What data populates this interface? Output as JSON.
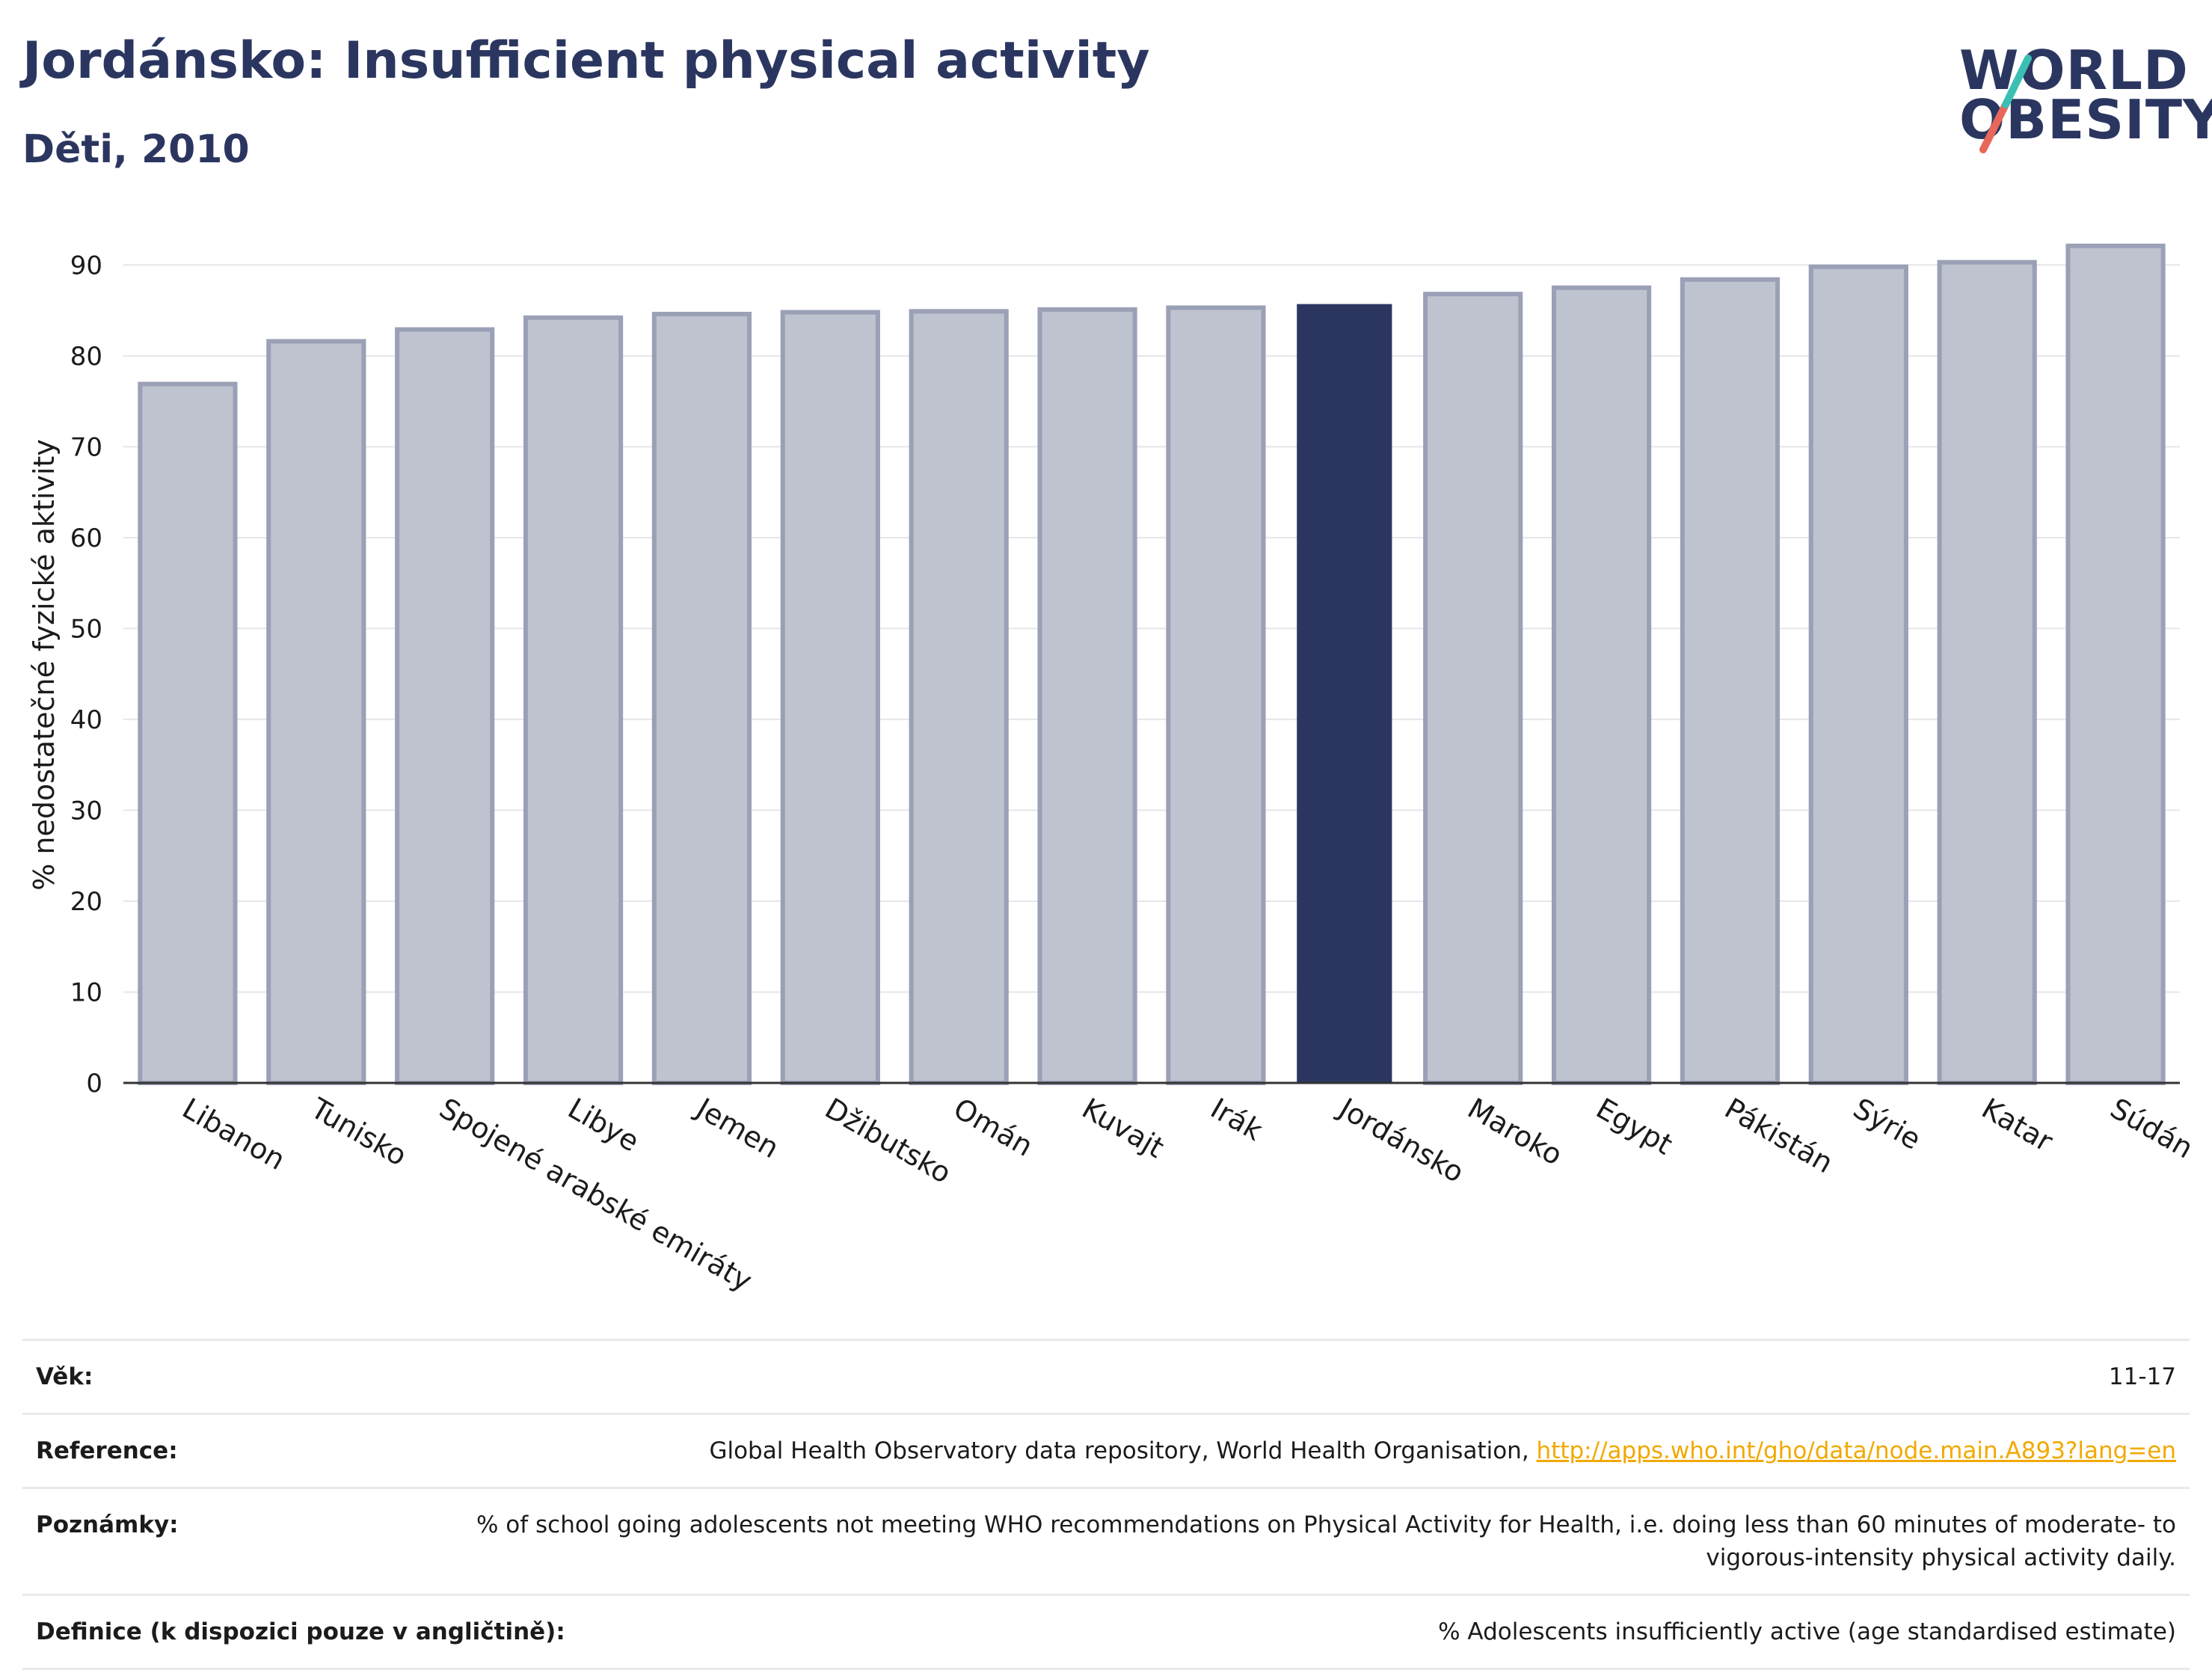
{
  "header": {
    "title": "Jordánsko: Insufficient physical activity",
    "subtitle": "Děti, 2010"
  },
  "logo": {
    "line1": "WORLD",
    "line2": "OBESITY",
    "accent_teal": "#3bbfb3",
    "accent_red": "#e8675a"
  },
  "colors": {
    "highlight": "#2b3660",
    "muted_fill": "#bfc3d0",
    "muted_stroke": "#9aa0b5",
    "grid": "#e6e6ea",
    "axis": "#333333"
  },
  "chart_data": {
    "type": "bar",
    "ylabel": "% nedostatečné fyzické aktivity",
    "ylim": [
      0,
      92
    ],
    "yticks": [
      0,
      10,
      20,
      30,
      40,
      50,
      60,
      70,
      80,
      90
    ],
    "grid": true,
    "categories": [
      "Libanon",
      "Tunisko",
      "Spojené arabské emiráty",
      "Libye",
      "Jemen",
      "Džibutsko",
      "Omán",
      "Kuvajt",
      "Irák",
      "Jordánsko",
      "Maroko",
      "Egypt",
      "Pákistán",
      "Sýrie",
      "Katar",
      "Súdán"
    ],
    "values": [
      76.9,
      81.6,
      82.9,
      84.2,
      84.6,
      84.8,
      84.9,
      85.1,
      85.3,
      85.7,
      86.8,
      87.5,
      88.4,
      89.8,
      90.3,
      92.1
    ],
    "highlight": "Jordánsko"
  },
  "meta": {
    "age_label": "Věk:",
    "age_value": "11-17",
    "ref_label": "Reference:",
    "ref_text": "Global Health Observatory data repository, World Health Organisation,",
    "ref_link": "http://apps.who.int/gho/data/node.main.A893?lang=en",
    "notes_label": "Poznámky:",
    "notes_value": "% of school going adolescents not meeting WHO recommendations on Physical Activity for Health, i.e. doing less than 60 minutes of moderate- to vigorous-intensity physical activity daily.",
    "def_label": "Definice (k dispozici pouze v angličtině):",
    "def_value": "% Adolescents insufficiently active (age standardised estimate)"
  }
}
